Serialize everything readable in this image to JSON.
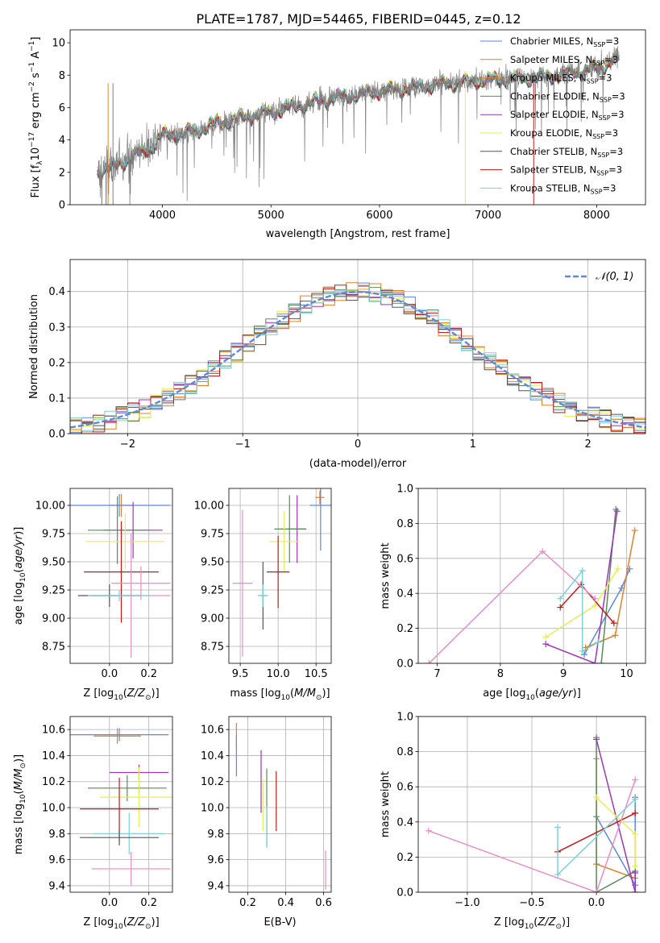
{
  "figure": {
    "title": "PLATE=1787, MJD=54465, FIBERID=0445, z=0.12"
  },
  "models": [
    {
      "name": "Chabrier MILES",
      "color": "#5b8ad8"
    },
    {
      "name": "Salpeter MILES",
      "color": "#e1812c"
    },
    {
      "name": "Kroupa MILES",
      "color": "#e1812c"
    },
    {
      "name": "Chabrier ELODIE",
      "color": "#5a8c5a"
    },
    {
      "name": "Salpeter ELODIE",
      "color": "#9b36b8"
    },
    {
      "name": "Kroupa ELODIE",
      "color": "#e6ee55"
    },
    {
      "name": "Chabrier STELIB",
      "color": "#555555"
    },
    {
      "name": "Salpeter STELIB",
      "color": "#c21a1a"
    },
    {
      "name": "Kroupa STELIB",
      "color": "#7fcfd9"
    }
  ],
  "chart_data": [
    {
      "id": "spectrum",
      "type": "line",
      "xlabel": "wavelength [Angstrom, rest frame]",
      "ylabel": "Flux [f_λ 10^-17 erg cm^-2 s^-1 A^-1]",
      "xlim": [
        3150,
        8450
      ],
      "ylim": [
        0,
        10.8
      ],
      "xticks": [
        4000,
        5000,
        6000,
        7000,
        8000
      ],
      "yticks": [
        0,
        2,
        4,
        6,
        8,
        10
      ],
      "legend": [
        {
          "label": "Chabrier MILES, N",
          "sub": "SSP",
          "tail": "=3",
          "color": "#5b8ad8"
        },
        {
          "label": "Salpeter MILES, N",
          "sub": "SSP",
          "tail": "=3",
          "color": "#e1812c"
        },
        {
          "label": "Kroupa MILES, N",
          "sub": "SSP",
          "tail": "=3",
          "color": "#e1812c"
        },
        {
          "label": "Chabrier ELODIE, N",
          "sub": "SSP",
          "tail": "=3",
          "color": "#5a8c5a"
        },
        {
          "label": "Salpeter ELODIE, N",
          "sub": "SSP",
          "tail": "=3",
          "color": "#9b36b8"
        },
        {
          "label": "Kroupa ELODIE, N",
          "sub": "SSP",
          "tail": "=3",
          "color": "#e6ee55"
        },
        {
          "label": "Chabrier STELIB, N",
          "sub": "SSP",
          "tail": "=3",
          "color": "#555555"
        },
        {
          "label": "Salpeter STELIB, N",
          "sub": "SSP",
          "tail": "=3",
          "color": "#c21a1a"
        },
        {
          "label": "Kroupa STELIB, N",
          "sub": "SSP",
          "tail": "=3",
          "color": "#7fcfd9"
        }
      ],
      "continuum_points": [
        [
          3400,
          2.1
        ],
        [
          3550,
          2.3
        ],
        [
          3700,
          2.9
        ],
        [
          3900,
          3.5
        ],
        [
          4000,
          4.3
        ],
        [
          4200,
          4.4
        ],
        [
          4500,
          5.0
        ],
        [
          4800,
          5.5
        ],
        [
          5000,
          5.7
        ],
        [
          5500,
          6.5
        ],
        [
          6000,
          7.0
        ],
        [
          6500,
          7.4
        ],
        [
          7000,
          7.7
        ],
        [
          7500,
          7.9
        ],
        [
          8000,
          8.4
        ],
        [
          8200,
          9.1
        ]
      ],
      "grid": false,
      "legend_position": "top-right"
    },
    {
      "id": "residuals",
      "type": "line",
      "xlabel": "(data-model)/error",
      "ylabel": "Normed distribution",
      "xlim": [
        -2.5,
        2.5
      ],
      "ylim": [
        0,
        0.49
      ],
      "xticks": [
        -2,
        -1,
        0,
        1,
        2
      ],
      "yticks": [
        0.0,
        0.1,
        0.2,
        0.3,
        0.4
      ],
      "legend": [
        {
          "label": "𝒩(0, 1)",
          "color": "#5b8ad8"
        }
      ],
      "bin_width": 0.1,
      "grid": true,
      "legend_position": "top-right"
    },
    {
      "id": "age-vs-z",
      "type": "scatter",
      "xlabel": "Z [log10(Z/Z⊙)]",
      "ylabel": "age  [log10(age/yr)]",
      "xlim": [
        -0.2,
        0.32
      ],
      "ylim": [
        8.6,
        10.15
      ],
      "xticks": [
        0.0,
        0.2
      ],
      "yticks": [
        8.75,
        9.0,
        9.25,
        9.5,
        9.75,
        10.0
      ],
      "grid": true,
      "points": [
        {
          "x": 0.06,
          "y": 10.0,
          "xerr": 0.06,
          "yerr": 0.1,
          "color": "#e1812c"
        },
        {
          "x": 0.05,
          "y": 10.0,
          "xerr": 0.26,
          "yerr": 0.1,
          "color": "#5b8ad8"
        },
        {
          "x": 0.12,
          "y": 9.78,
          "xerr": 0.15,
          "yerr": 0.25,
          "color": "#9b36b8"
        },
        {
          "x": 0.04,
          "y": 9.78,
          "xerr": 0.15,
          "yerr": 0.3,
          "color": "#5a8c5a"
        },
        {
          "x": 0.08,
          "y": 9.68,
          "xerr": 0.2,
          "yerr": 0.25,
          "color": "#e6ee55"
        },
        {
          "x": 0.06,
          "y": 9.41,
          "xerr": 0.19,
          "yerr": 0.45,
          "color": "#c21a1a"
        },
        {
          "x": 0.16,
          "y": 9.31,
          "xerr": 0.15,
          "yerr": 0.15,
          "color": "#e98ec3"
        },
        {
          "x": 0.11,
          "y": 9.2,
          "xerr": 0.2,
          "yerr": 0.55,
          "color": "#e98ec3"
        },
        {
          "x": 0.0,
          "y": 9.2,
          "xerr": 0.16,
          "yerr": 0.1,
          "color": "#555555"
        },
        {
          "x": 0.05,
          "y": 9.2,
          "xerr": 0.16,
          "yerr": 0.05,
          "color": "#7fcfd9"
        }
      ]
    },
    {
      "id": "age-vs-mass",
      "type": "scatter",
      "xlabel": "mass [log10(M/M⊙)]",
      "ylabel": "",
      "xlim": [
        9.35,
        10.7
      ],
      "ylim": [
        8.6,
        10.15
      ],
      "xticks": [
        9.5,
        10.0,
        10.5
      ],
      "yticks": [
        8.75,
        9.0,
        9.25,
        9.5,
        9.75,
        10.0
      ],
      "grid": true,
      "points": [
        {
          "x": 10.55,
          "y": 10.07,
          "xerr": 0.06,
          "yerr": 0.06,
          "color": "#e1812c"
        },
        {
          "x": 10.56,
          "y": 10.0,
          "xerr": 0.14,
          "yerr": 0.4,
          "color": "#5b8ad8"
        },
        {
          "x": 10.25,
          "y": 9.79,
          "xerr": 0.12,
          "yerr": 0.3,
          "color": "#9b36b8"
        },
        {
          "x": 10.15,
          "y": 9.79,
          "xerr": 0.2,
          "yerr": 0.3,
          "color": "#5a8c5a"
        },
        {
          "x": 10.08,
          "y": 9.68,
          "xerr": 0.2,
          "yerr": 0.27,
          "color": "#e6ee55"
        },
        {
          "x": 10.0,
          "y": 9.41,
          "xerr": 0.15,
          "yerr": 0.32,
          "color": "#c21a1a"
        },
        {
          "x": 9.53,
          "y": 9.31,
          "xerr": 0.13,
          "yerr": 0.65,
          "color": "#e98ec3"
        },
        {
          "x": 9.8,
          "y": 9.2,
          "xerr": 0.05,
          "yerr": 0.3,
          "color": "#555555"
        },
        {
          "x": 9.8,
          "y": 9.2,
          "xerr": 0.07,
          "yerr": 0.1,
          "color": "#7fcfd9"
        }
      ]
    },
    {
      "id": "weight-vs-age",
      "type": "line",
      "xlabel": "age  [log10(age/yr)]",
      "ylabel": "mass weight",
      "xlim": [
        6.7,
        10.3
      ],
      "ylim": [
        0,
        1
      ],
      "xticks": [
        7,
        8,
        9,
        10
      ],
      "yticks": [
        0.0,
        0.2,
        0.4,
        0.6,
        0.8,
        1.0
      ],
      "grid": true,
      "series": [
        {
          "color": "#5b8ad8",
          "x": [
            9.33,
            9.92,
            10.05
          ],
          "y": [
            0.05,
            0.43,
            0.54
          ]
        },
        {
          "color": "#e1812c",
          "x": [
            9.35,
            9.82,
            10.13
          ],
          "y": [
            0.09,
            0.16,
            0.76
          ]
        },
        {
          "color": "#5a8c5a",
          "x": [
            9.6,
            9.83
          ],
          "y": [
            0.0,
            0.88
          ]
        },
        {
          "color": "#9b36b8",
          "x": [
            8.72,
            9.5,
            9.85
          ],
          "y": [
            0.11,
            0.0,
            0.87
          ]
        },
        {
          "color": "#e6ee55",
          "x": [
            8.72,
            9.5,
            9.86
          ],
          "y": [
            0.15,
            0.33,
            0.54
          ]
        },
        {
          "color": "#c21a1a",
          "x": [
            8.95,
            9.28,
            9.8
          ],
          "y": [
            0.32,
            0.45,
            0.23
          ]
        },
        {
          "color": "#e98ec3",
          "x": [
            6.87,
            8.67,
            9.5
          ],
          "y": [
            0.0,
            0.64,
            0.37
          ]
        },
        {
          "color": "#7fcfd9",
          "x": [
            8.95,
            9.3,
            9.3,
            9.55
          ],
          "y": [
            0.37,
            0.53,
            0.07,
            0.12
          ]
        }
      ]
    },
    {
      "id": "mass-vs-z",
      "type": "scatter",
      "xlabel": "Z [log10(Z/Z⊙)]",
      "ylabel": "mass [log10(M/M⊙)]",
      "xlim": [
        -0.2,
        0.32
      ],
      "ylim": [
        9.35,
        10.7
      ],
      "xticks": [
        0.0,
        0.2
      ],
      "yticks": [
        9.4,
        9.6,
        9.8,
        10.0,
        10.2,
        10.4,
        10.6
      ],
      "grid": true,
      "points": [
        {
          "x": 0.05,
          "y": 10.56,
          "xerr": 0.25,
          "yerr": 0.05,
          "color": "#5b8ad8"
        },
        {
          "x": 0.04,
          "y": 10.55,
          "xerr": 0.12,
          "yerr": 0.06,
          "color": "#e1812c"
        },
        {
          "x": 0.15,
          "y": 10.27,
          "xerr": 0.15,
          "yerr": 0.06,
          "color": "#9b36b8"
        },
        {
          "x": 0.09,
          "y": 10.15,
          "xerr": 0.2,
          "yerr": 0.1,
          "color": "#5a8c5a"
        },
        {
          "x": 0.15,
          "y": 10.08,
          "xerr": 0.2,
          "yerr": 0.23,
          "color": "#e6ee55"
        },
        {
          "x": 0.05,
          "y": 9.99,
          "xerr": 0.2,
          "yerr": 0.24,
          "color": "#c21a1a"
        },
        {
          "x": 0.1,
          "y": 9.8,
          "xerr": 0.18,
          "yerr": 0.16,
          "color": "#7fcfd9"
        },
        {
          "x": 0.05,
          "y": 9.77,
          "xerr": 0.2,
          "yerr": 0.06,
          "color": "#555555"
        },
        {
          "x": 0.11,
          "y": 9.53,
          "xerr": 0.2,
          "yerr": 0.13,
          "color": "#e98ec3"
        }
      ]
    },
    {
      "id": "mass-vs-ebv",
      "type": "scatter",
      "xlabel": "E(B-V)",
      "ylabel": "",
      "xlim": [
        0.1,
        0.64
      ],
      "ylim": [
        9.35,
        10.7
      ],
      "xticks": [
        0.2,
        0.4,
        0.6
      ],
      "yticks": [
        9.4,
        9.6,
        9.8,
        10.0,
        10.2,
        10.4,
        10.6
      ],
      "grid": true,
      "points": [
        {
          "x": 0.14,
          "y": 10.55,
          "xerr": 0,
          "yerr": 0.1,
          "color": "#e1812c"
        },
        {
          "x": 0.14,
          "y": 10.4,
          "xerr": 0,
          "yerr": 0.16,
          "color": "#5b8ad8"
        },
        {
          "x": 0.27,
          "y": 10.2,
          "xerr": 0,
          "yerr": 0.24,
          "color": "#9b36b8"
        },
        {
          "x": 0.28,
          "y": 10.02,
          "xerr": 0,
          "yerr": 0.2,
          "color": "#e6ee55"
        },
        {
          "x": 0.3,
          "y": 10.0,
          "xerr": 0,
          "yerr": 0.3,
          "color": "#5a8c5a"
        },
        {
          "x": 0.35,
          "y": 10.05,
          "xerr": 0,
          "yerr": 0.23,
          "color": "#c21a1a"
        },
        {
          "x": 0.3,
          "y": 9.85,
          "xerr": 0,
          "yerr": 0.16,
          "color": "#7fcfd9"
        },
        {
          "x": 0.61,
          "y": 9.52,
          "xerr": 0,
          "yerr": 0.15,
          "color": "#e98ec3"
        }
      ]
    },
    {
      "id": "weight-vs-z",
      "type": "line",
      "xlabel": "Z [log10(Z/Z⊙)]",
      "ylabel": "mass weight",
      "xlim": [
        -1.38,
        0.38
      ],
      "ylim": [
        0,
        1
      ],
      "xticks": [
        -1.0,
        -0.5,
        0.0
      ],
      "yticks": [
        0.0,
        0.2,
        0.4,
        0.6,
        0.8,
        1.0
      ],
      "grid": true,
      "series": [
        {
          "color": "#5b8ad8",
          "x": [
            0.0,
            0.3,
            0.3
          ],
          "y": [
            0.43,
            0.04,
            0.54
          ]
        },
        {
          "color": "#e1812c",
          "x": [
            0.0,
            0.0,
            0.3
          ],
          "y": [
            0.76,
            0.16,
            0.08
          ]
        },
        {
          "color": "#5a8c5a",
          "x": [
            0.0,
            0.0,
            0.3
          ],
          "y": [
            0.88,
            0.0,
            0.12
          ]
        },
        {
          "color": "#9b36b8",
          "x": [
            0.0,
            0.3,
            0.3
          ],
          "y": [
            0.87,
            0.0,
            0.11
          ]
        },
        {
          "color": "#e6ee55",
          "x": [
            0.0,
            0.3,
            0.3
          ],
          "y": [
            0.54,
            0.33,
            0.15
          ]
        },
        {
          "color": "#c21a1a",
          "x": [
            -0.3,
            0.3
          ],
          "y": [
            0.23,
            0.45
          ]
        },
        {
          "color": "#e98ec3",
          "x": [
            -1.3,
            0.0,
            0.3
          ],
          "y": [
            0.35,
            0.0,
            0.64
          ]
        },
        {
          "color": "#7fcfd9",
          "x": [
            -0.3,
            -0.3,
            0.3
          ],
          "y": [
            0.37,
            0.1,
            0.53
          ]
        }
      ]
    }
  ]
}
